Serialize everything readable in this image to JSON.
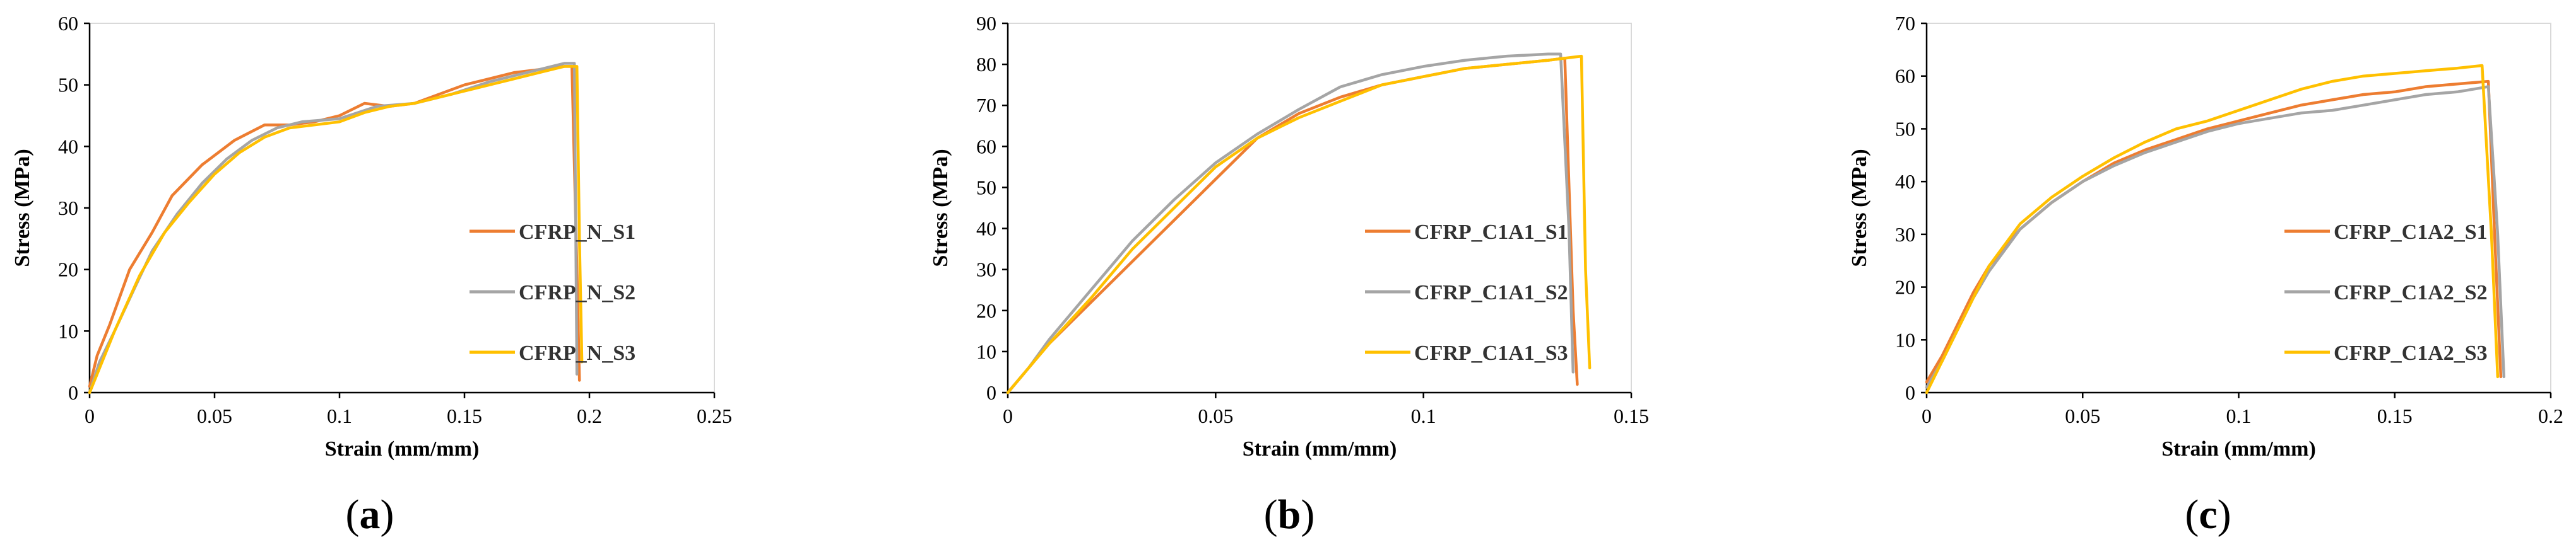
{
  "chart_data": [
    {
      "type": "line",
      "panel_label": "a",
      "xlabel": "Strain (mm/mm)",
      "ylabel": "Stress (MPa)",
      "xlim": [
        0,
        0.25
      ],
      "ylim": [
        0,
        60
      ],
      "xticks": [
        0,
        0.05,
        0.1,
        0.15,
        0.2,
        0.25
      ],
      "xtick_labels": [
        "0",
        "0.05",
        "0.1",
        "0.15",
        "0.2",
        "0.25"
      ],
      "yticks": [
        0,
        10,
        20,
        30,
        40,
        50,
        60
      ],
      "ytick_labels": [
        "0",
        "10",
        "20",
        "30",
        "40",
        "50",
        "60"
      ],
      "legend_position": "right",
      "series": [
        {
          "name": "CFRP_N_S1",
          "color": "#ED7D31",
          "x": [
            0,
            0.003,
            0.008,
            0.016,
            0.025,
            0.033,
            0.045,
            0.058,
            0.07,
            0.08,
            0.09,
            0.1,
            0.11,
            0.12,
            0.13,
            0.14,
            0.15,
            0.16,
            0.17,
            0.18,
            0.19,
            0.193,
            0.195,
            0.196
          ],
          "y": [
            1,
            6,
            11,
            20,
            26,
            32,
            37,
            41,
            43.5,
            43.5,
            44,
            45,
            47,
            46.5,
            47,
            48.5,
            50,
            51,
            52,
            52.5,
            53,
            53,
            20,
            2
          ]
        },
        {
          "name": "CFRP_N_S2",
          "color": "#A5A5A5",
          "x": [
            0,
            0.004,
            0.01,
            0.018,
            0.025,
            0.035,
            0.045,
            0.055,
            0.065,
            0.075,
            0.085,
            0.1,
            0.115,
            0.13,
            0.145,
            0.16,
            0.17,
            0.18,
            0.19,
            0.194,
            0.195
          ],
          "y": [
            0,
            5,
            10,
            17,
            23,
            29,
            34,
            38,
            41,
            43,
            44,
            44.5,
            46.5,
            47,
            48.5,
            50.5,
            51.5,
            52.5,
            53.5,
            53.5,
            3
          ]
        },
        {
          "name": "CFRP_N_S3",
          "color": "#FFC000",
          "x": [
            0,
            0.005,
            0.01,
            0.02,
            0.03,
            0.04,
            0.05,
            0.06,
            0.07,
            0.08,
            0.09,
            0.1,
            0.11,
            0.12,
            0.13,
            0.14,
            0.15,
            0.16,
            0.17,
            0.18,
            0.19,
            0.195,
            0.196,
            0.197
          ],
          "y": [
            0,
            5,
            10,
            19,
            26,
            31,
            35.5,
            39,
            41.5,
            43,
            43.5,
            44,
            45.5,
            46.5,
            47,
            48,
            49,
            50,
            51,
            52,
            53,
            53,
            25,
            5
          ]
        }
      ]
    },
    {
      "type": "line",
      "panel_label": "b",
      "xlabel": "Strain (mm/mm)",
      "ylabel": "Stress (MPa)",
      "xlim": [
        0,
        0.15
      ],
      "ylim": [
        0,
        90
      ],
      "xticks": [
        0,
        0.05,
        0.1,
        0.15
      ],
      "xtick_labels": [
        "0",
        "0.05",
        "0.1",
        "0.15"
      ],
      "yticks": [
        0,
        10,
        20,
        30,
        40,
        50,
        60,
        70,
        80,
        90
      ],
      "ytick_labels": [
        "0",
        "10",
        "20",
        "30",
        "40",
        "50",
        "60",
        "70",
        "80",
        "90"
      ],
      "legend_position": "right",
      "series": [
        {
          "name": "CFRP_C1A1_S1",
          "color": "#ED7D31",
          "x": [
            0,
            0.005,
            0.01,
            0.02,
            0.03,
            0.04,
            0.05,
            0.06,
            0.07,
            0.08,
            0.09,
            0.1,
            0.11,
            0.12,
            0.13,
            0.134,
            0.136,
            0.137
          ],
          "y": [
            0,
            6,
            12,
            22,
            32,
            42,
            52,
            62,
            68,
            72,
            75,
            77,
            79,
            80,
            81,
            81.5,
            20,
            2
          ]
        },
        {
          "name": "CFRP_C1A1_S2",
          "color": "#A5A5A5",
          "x": [
            0,
            0.005,
            0.01,
            0.02,
            0.03,
            0.04,
            0.05,
            0.06,
            0.07,
            0.08,
            0.09,
            0.1,
            0.11,
            0.12,
            0.13,
            0.133,
            0.135,
            0.136
          ],
          "y": [
            0,
            6,
            13,
            25,
            37,
            47,
            56,
            63,
            69,
            74.5,
            77.5,
            79.5,
            81,
            82,
            82.5,
            82.5,
            40,
            5
          ]
        },
        {
          "name": "CFRP_C1A1_S3",
          "color": "#FFC000",
          "x": [
            0,
            0.005,
            0.01,
            0.02,
            0.03,
            0.04,
            0.05,
            0.06,
            0.07,
            0.08,
            0.09,
            0.1,
            0.11,
            0.12,
            0.13,
            0.138,
            0.139,
            0.14
          ],
          "y": [
            0,
            6,
            12,
            23,
            35,
            45,
            55,
            62,
            67,
            71,
            75,
            77,
            79,
            80,
            81,
            82,
            30,
            6
          ]
        }
      ]
    },
    {
      "type": "line",
      "panel_label": "c",
      "xlabel": "Strain (mm/mm)",
      "ylabel": "Stress (MPa)",
      "xlim": [
        0,
        0.2
      ],
      "ylim": [
        0,
        70
      ],
      "xticks": [
        0,
        0.05,
        0.1,
        0.15,
        0.2
      ],
      "xtick_labels": [
        "0",
        "0.05",
        "0.1",
        "0.15",
        "0.2"
      ],
      "yticks": [
        0,
        10,
        20,
        30,
        40,
        50,
        60,
        70
      ],
      "ytick_labels": [
        "0",
        "10",
        "20",
        "30",
        "40",
        "50",
        "60",
        "70"
      ],
      "legend_position": "right",
      "series": [
        {
          "name": "CFRP_C1A2_S1",
          "color": "#ED7D31",
          "x": [
            0,
            0.005,
            0.01,
            0.015,
            0.02,
            0.03,
            0.04,
            0.05,
            0.06,
            0.07,
            0.08,
            0.09,
            0.1,
            0.11,
            0.12,
            0.13,
            0.14,
            0.15,
            0.16,
            0.17,
            0.18,
            0.182,
            0.184
          ],
          "y": [
            2,
            7,
            13,
            19,
            24,
            31,
            36,
            40,
            43.5,
            46,
            48,
            50,
            51.5,
            53,
            54.5,
            55.5,
            56.5,
            57,
            58,
            58.5,
            59,
            30,
            3
          ]
        },
        {
          "name": "CFRP_C1A2_S2",
          "color": "#A5A5A5",
          "x": [
            0,
            0.005,
            0.01,
            0.015,
            0.02,
            0.03,
            0.04,
            0.05,
            0.06,
            0.07,
            0.08,
            0.09,
            0.1,
            0.11,
            0.12,
            0.13,
            0.14,
            0.15,
            0.16,
            0.17,
            0.18,
            0.183,
            0.185
          ],
          "y": [
            1,
            6,
            12,
            18,
            23,
            31,
            36,
            40,
            43,
            45.5,
            47.5,
            49.5,
            51,
            52,
            53,
            53.5,
            54.5,
            55.5,
            56.5,
            57,
            58,
            30,
            3
          ]
        },
        {
          "name": "CFRP_C1A2_S3",
          "color": "#FFC000",
          "x": [
            0,
            0.005,
            0.01,
            0.015,
            0.02,
            0.03,
            0.04,
            0.05,
            0.06,
            0.07,
            0.08,
            0.09,
            0.1,
            0.11,
            0.12,
            0.13,
            0.14,
            0.15,
            0.16,
            0.17,
            0.178,
            0.181,
            0.183
          ],
          "y": [
            0,
            6,
            12,
            18,
            24,
            32,
            37,
            41,
            44.5,
            47.5,
            50,
            51.5,
            53.5,
            55.5,
            57.5,
            59,
            60,
            60.5,
            61,
            61.5,
            62,
            30,
            3
          ]
        }
      ]
    }
  ]
}
